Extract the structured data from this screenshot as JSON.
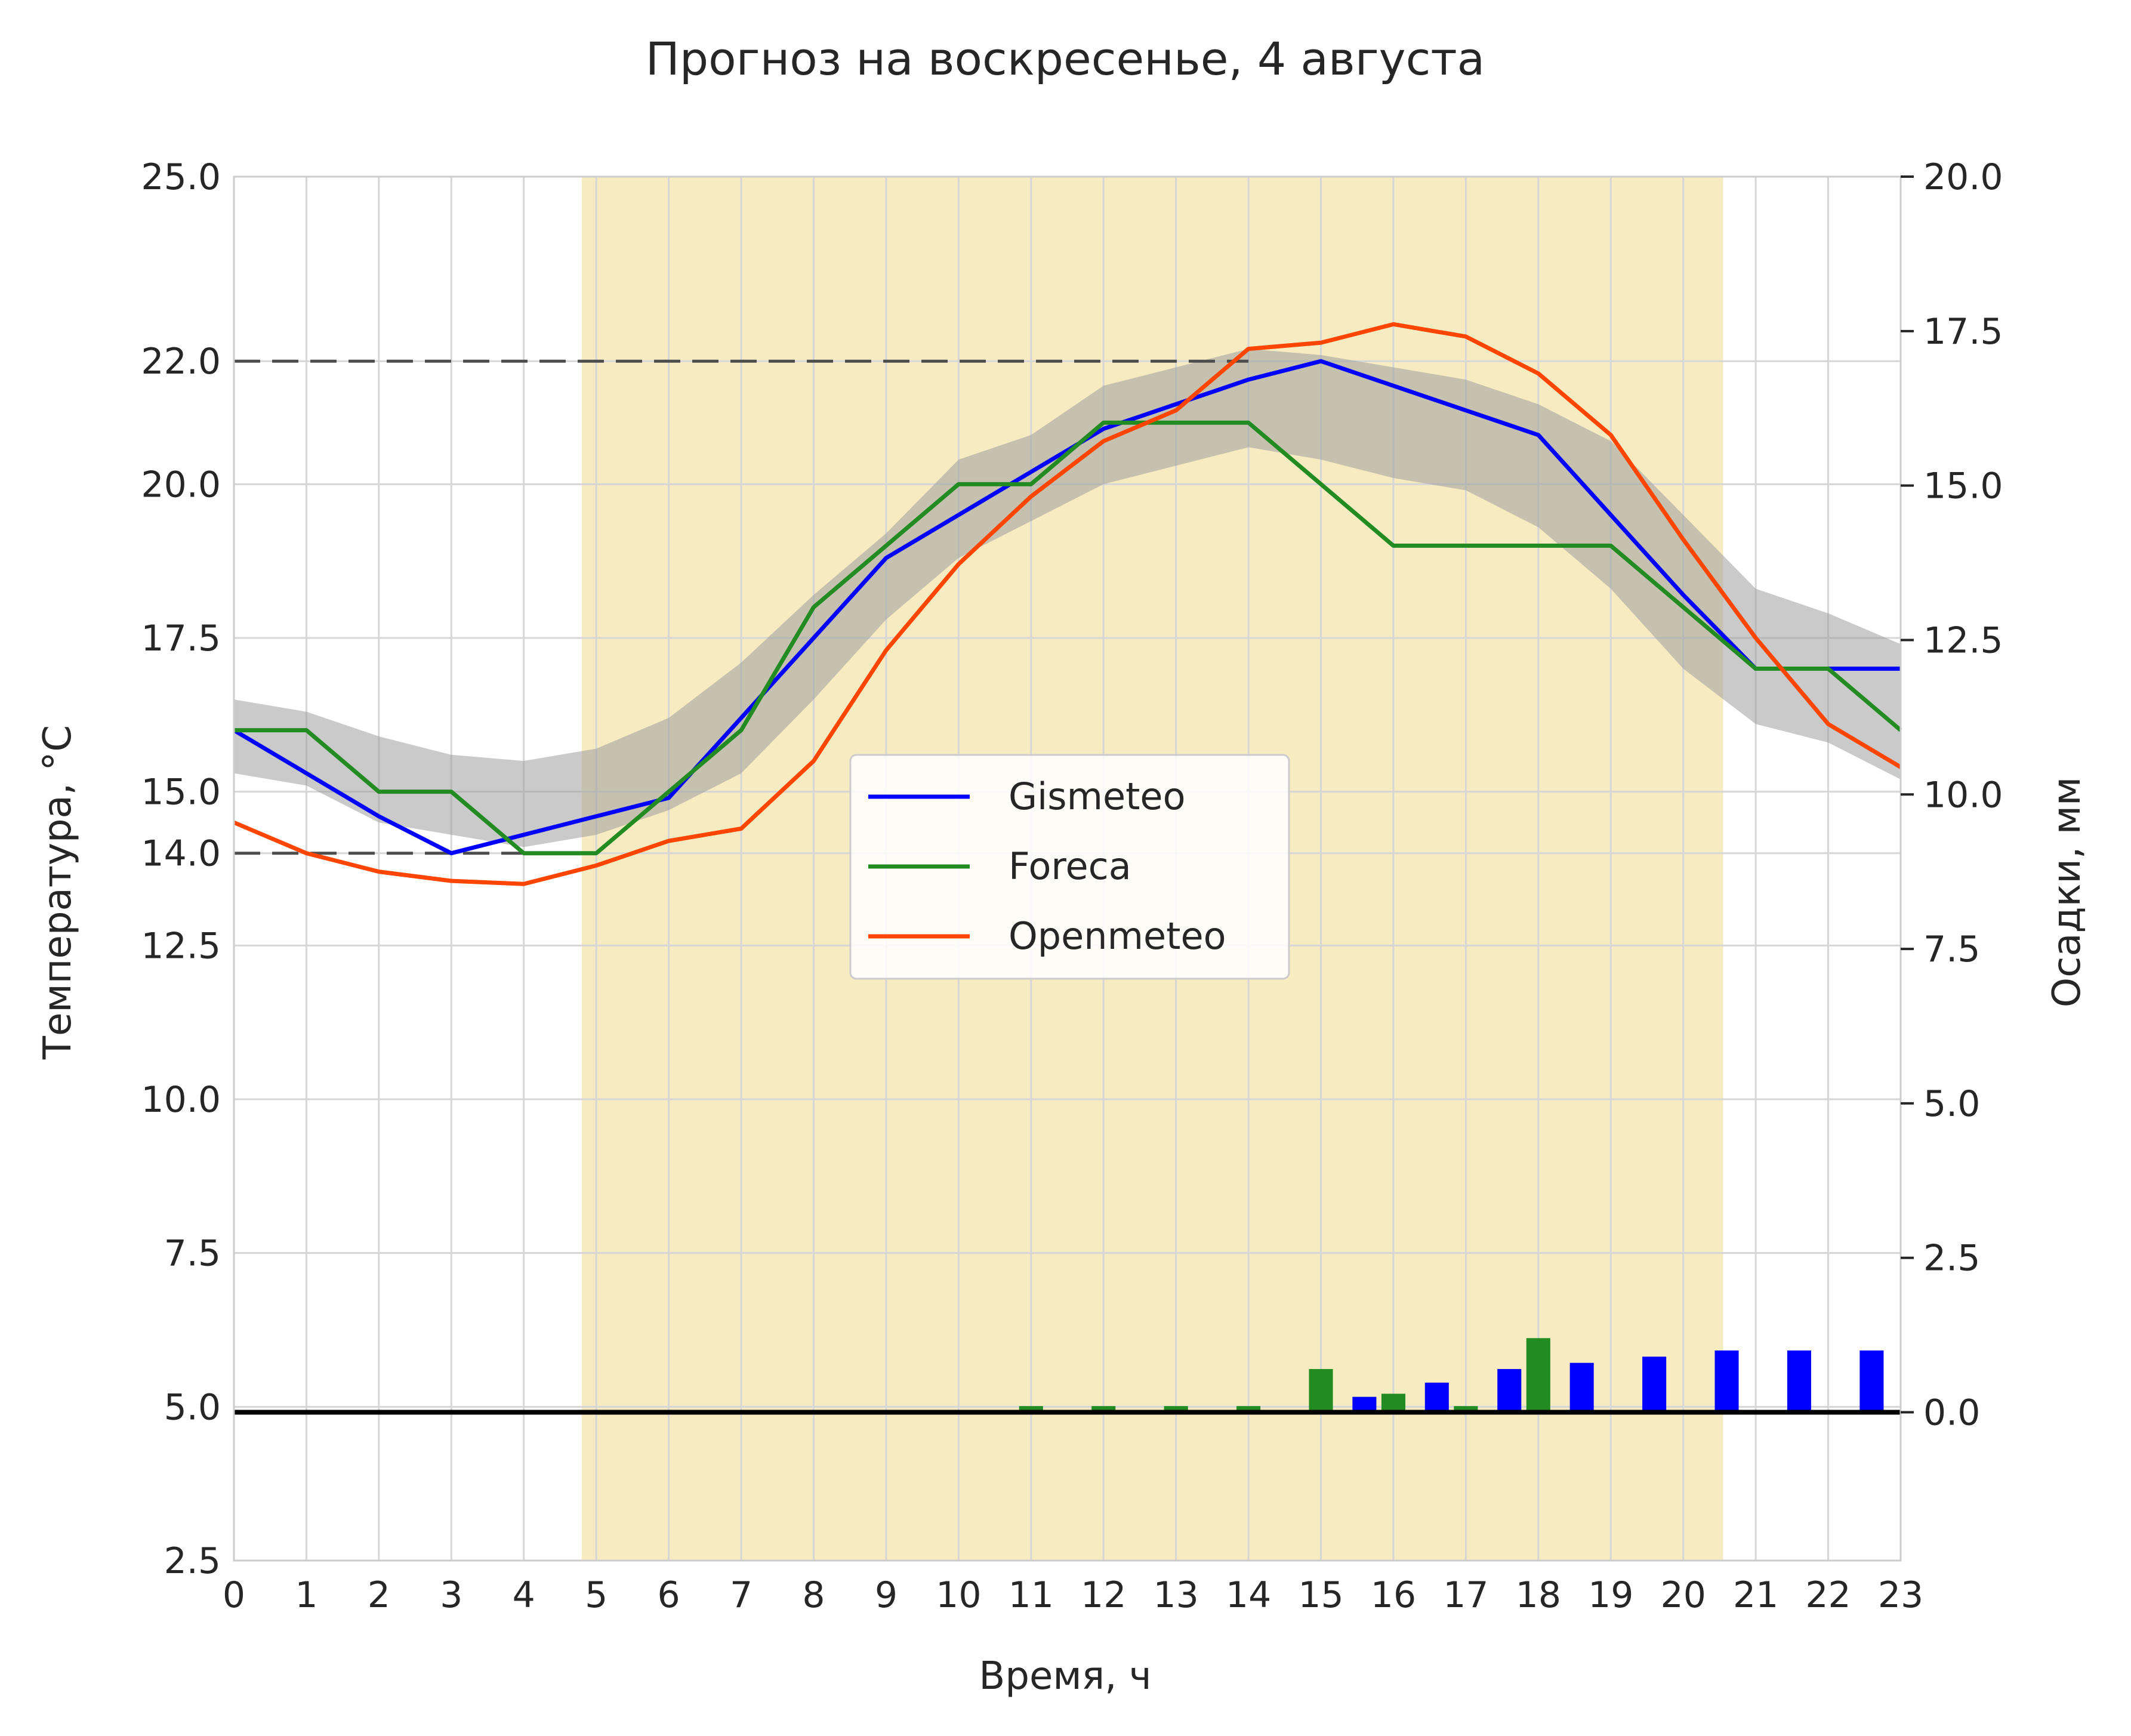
{
  "chart_data": {
    "type": "line",
    "title": "Прогноз на воскресенье,  4 августа",
    "xlabel": "Время, ч",
    "ylabel": "Температура, °C",
    "ylabel_right": "Осадки, мм",
    "x": [
      0,
      1,
      2,
      3,
      4,
      5,
      6,
      7,
      8,
      9,
      10,
      11,
      12,
      13,
      14,
      15,
      16,
      17,
      18,
      19,
      20,
      21,
      22,
      23
    ],
    "xlim": [
      0,
      23
    ],
    "ylim": [
      2.5,
      25
    ],
    "ylim_right": [
      -2.4,
      20
    ],
    "yticks": [
      2.5,
      5.0,
      7.5,
      10.0,
      12.5,
      14.0,
      15.0,
      17.5,
      20.0,
      22.0,
      25.0
    ],
    "yticks_right": [
      0.0,
      2.5,
      5.0,
      7.5,
      10.0,
      12.5,
      15.0,
      17.5,
      20.0
    ],
    "grid": true,
    "legend_position": "center",
    "daylight_span": [
      4.8,
      20.55
    ],
    "reference_lines": [
      {
        "y": 22.0,
        "x_from": 0,
        "x_to": 14
      },
      {
        "y": 14.0,
        "x_from": 0,
        "x_to": 4
      }
    ],
    "series": [
      {
        "name": "Gismeteo",
        "color": "#0000ff",
        "values": [
          16,
          15.3,
          14.6,
          14,
          14.3,
          14.6,
          14.9,
          16.2,
          17.5,
          18.8,
          19.5,
          20.2,
          20.9,
          21.3,
          21.7,
          22,
          21.6,
          21.2,
          20.8,
          19.5,
          18.2,
          17,
          17,
          17
        ]
      },
      {
        "name": "Foreca",
        "color": "#228b22",
        "values": [
          16,
          16,
          15,
          15,
          14,
          14,
          15,
          16,
          18,
          19,
          20,
          20,
          21,
          21,
          21,
          20,
          19,
          19,
          19,
          19,
          18,
          17,
          17,
          16
        ]
      },
      {
        "name": "Openmeteo",
        "color": "#ff4500",
        "values": [
          14.5,
          14,
          13.7,
          13.55,
          13.5,
          13.8,
          14.2,
          14.4,
          15.5,
          17.3,
          18.7,
          19.8,
          20.7,
          21.2,
          22.2,
          22.3,
          22.6,
          22.4,
          21.8,
          20.8,
          19.1,
          17.5,
          16.1,
          15.4
        ]
      }
    ],
    "ensemble_band": {
      "lower": [
        15.3,
        15.1,
        14.5,
        14.3,
        14.1,
        14.3,
        14.7,
        15.3,
        16.5,
        17.8,
        18.8,
        19.4,
        20.0,
        20.3,
        20.6,
        20.4,
        20.1,
        19.9,
        19.3,
        18.3,
        17.0,
        16.1,
        15.8,
        15.2
      ],
      "upper": [
        16.5,
        16.3,
        15.9,
        15.6,
        15.5,
        15.7,
        16.2,
        17.1,
        18.2,
        19.2,
        20.4,
        20.8,
        21.6,
        21.9,
        22.2,
        22.1,
        21.9,
        21.7,
        21.3,
        20.7,
        19.5,
        18.3,
        17.9,
        17.4
      ]
    },
    "precipitation": {
      "ylabel": "Осадки, мм",
      "series": [
        {
          "name": "Gismeteo",
          "color": "#0000ff",
          "x": [
            15.6,
            16.6,
            17.6,
            18.6,
            19.6,
            20.6,
            21.6,
            22.6
          ],
          "values": [
            0.25,
            0.48,
            0.7,
            0.8,
            0.9,
            1.0,
            1.0,
            1.0
          ]
        },
        {
          "name": "Foreca",
          "color": "#228b22",
          "x": [
            11,
            12,
            13,
            14,
            15,
            16,
            17,
            18
          ],
          "values": [
            0.1,
            0.1,
            0.1,
            0.1,
            0.7,
            0.3,
            0.1,
            1.2
          ]
        }
      ]
    }
  }
}
